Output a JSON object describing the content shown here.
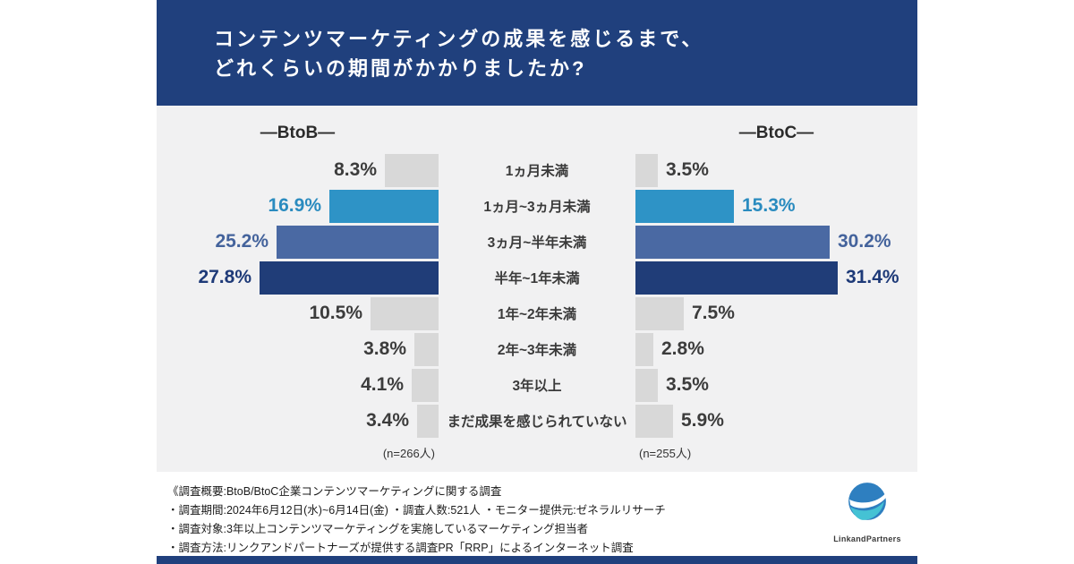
{
  "header": {
    "title_line1": "コンテンツマーケティングの成果を感じるまで、",
    "title_line2": "どれくらいの期間がかかりましたか?"
  },
  "chart_data": {
    "type": "bar",
    "variant": "butterfly-horizontal",
    "title": "コンテンツマーケティングの成果を感じるまで、どれくらいの期間がかかりましたか?",
    "unit": "%",
    "xlim": [
      0,
      32
    ],
    "legend_position": "column-headers",
    "grid": false,
    "categories": [
      "1ヵ月未満",
      "1ヵ月~3ヵ月未満",
      "3ヵ月~半年未満",
      "半年~1年未満",
      "1年~2年未満",
      "2年~3年未満",
      "3年以上",
      "まだ成果を感じられていない"
    ],
    "series": [
      {
        "name": "BtoB",
        "header_label": "―BtoB―",
        "n_label": "(n=266人)",
        "values": [
          8.3,
          16.9,
          25.2,
          27.8,
          10.5,
          3.8,
          4.1,
          3.4
        ]
      },
      {
        "name": "BtoC",
        "header_label": "―BtoC―",
        "n_label": "(n=255人)",
        "values": [
          3.5,
          15.3,
          30.2,
          31.4,
          7.5,
          2.8,
          3.5,
          5.9
        ]
      }
    ],
    "bar_colors_by_row": [
      "#d8d8d8",
      "#2e93c6",
      "#4a69a3",
      "#203d78",
      "#d8d8d8",
      "#d8d8d8",
      "#d8d8d8",
      "#d8d8d8"
    ],
    "value_text_colors_by_row": [
      "#3c3c3c",
      "#2a8bbf",
      "#44639c",
      "#1e3a78",
      "#3c3c3c",
      "#3c3c3c",
      "#3c3c3c",
      "#3c3c3c"
    ],
    "accent_navy": "#20407d",
    "accent_blue": "#2e93c6",
    "accent_steel": "#4a69a3",
    "bar_gray": "#d8d8d8"
  },
  "footer": {
    "lines": [
      "《調査概要:BtoB/BtoC企業コンテンツマーケティングに関する調査",
      "・調査期間:2024年6月12日(水)~6月14日(金) ・調査人数:521人 ・モニター提供元:ゼネラルリサーチ",
      "・調査対象:3年以上コンテンツマーケティングを実施しているマーケティング担当者",
      "・調査方法:リンクアンドパートナーズが提供する調査PR「RRP」によるインターネット調査"
    ]
  },
  "logo": {
    "text": "LinkandPartners"
  }
}
